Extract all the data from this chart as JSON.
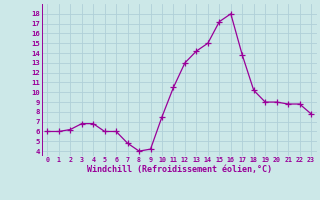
{
  "x": [
    0,
    1,
    2,
    3,
    4,
    5,
    6,
    7,
    8,
    9,
    10,
    11,
    12,
    13,
    14,
    15,
    16,
    17,
    18,
    19,
    20,
    21,
    22,
    23
  ],
  "y": [
    6.0,
    6.0,
    6.2,
    6.8,
    6.8,
    6.0,
    6.0,
    4.8,
    4.0,
    4.2,
    7.5,
    10.5,
    13.0,
    14.2,
    15.0,
    17.2,
    18.0,
    13.8,
    10.2,
    9.0,
    9.0,
    8.8,
    8.8,
    7.8
  ],
  "line_color": "#990099",
  "marker": "D",
  "marker_size": 2.2,
  "bg_color": "#cce8e8",
  "grid_color": "#b0d0d8",
  "xlabel": "Windchill (Refroidissement éolien,°C)",
  "xlabel_color": "#990099",
  "tick_color": "#990099",
  "ylim": [
    3.5,
    19.0
  ],
  "xlim": [
    -0.5,
    23.5
  ],
  "yticks": [
    4,
    5,
    6,
    7,
    8,
    9,
    10,
    11,
    12,
    13,
    14,
    15,
    16,
    17,
    18
  ],
  "xticks": [
    0,
    1,
    2,
    3,
    4,
    5,
    6,
    7,
    8,
    9,
    10,
    11,
    12,
    13,
    14,
    15,
    16,
    17,
    18,
    19,
    20,
    21,
    22,
    23
  ],
  "line_width": 0.9
}
